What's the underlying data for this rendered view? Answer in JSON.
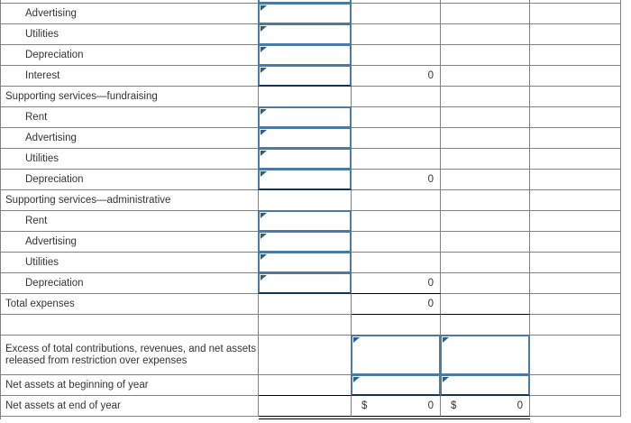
{
  "colors": {
    "grid_line": "#828282",
    "input_border": "#4a7aa5",
    "input_flag": "#2d5d91",
    "sum_rule": "#000000",
    "input_dark_rule": "#14355f"
  },
  "table": {
    "rows": [
      {
        "label": "Advertising"
      },
      {
        "label": "Utilities"
      },
      {
        "label": "Depreciation"
      },
      {
        "label": "Interest",
        "amount_col1": "0"
      },
      {
        "label": "Supporting services—fundraising"
      },
      {
        "label": "Rent"
      },
      {
        "label": "Advertising"
      },
      {
        "label": "Utilities"
      },
      {
        "label": "Depreciation",
        "amount_col1": "0"
      },
      {
        "label": "Supporting services—administrative"
      },
      {
        "label": "Rent"
      },
      {
        "label": "Advertising"
      },
      {
        "label": "Utilities"
      },
      {
        "label": "Depreciation",
        "amount_col1": "0"
      },
      {
        "label": "Total expenses",
        "amount_col1": "0"
      },
      {
        "label": ""
      },
      {
        "label": "Excess of total contributions, revenues, and net assets released from restriction over expenses"
      },
      {
        "label": "Net assets at beginning of year"
      },
      {
        "label": "Net assets at end of year",
        "currency_col1": "$",
        "amount_col1": "0",
        "currency_col2": "$",
        "amount_col2": "0"
      }
    ]
  }
}
